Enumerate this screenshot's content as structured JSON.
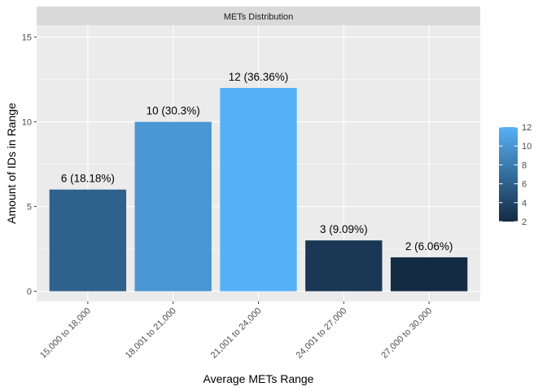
{
  "chart_data": {
    "type": "bar",
    "facet_title": "METs Distribution",
    "categories": [
      "15,000 to 18,000",
      "18,001 to 21,000",
      "21,001 to 24,000",
      "24,001 to 27,000",
      "27,000 to 30,000"
    ],
    "values": [
      6,
      10,
      12,
      3,
      2
    ],
    "data_labels": [
      "6 (18.18%)",
      "10 (30.3%)",
      "12 (36.36%)",
      "3 (9.09%)",
      "2 (6.06%)"
    ],
    "xlabel": "Average METs Range",
    "ylabel": "Amount of IDs in Range",
    "ylim": [
      -0.6,
      15.7
    ],
    "yticks": [
      0,
      5,
      10,
      15
    ],
    "y_tick_labels": [
      "0",
      "5",
      "10",
      "15"
    ],
    "grid": true,
    "legend": {
      "type": "colorbar",
      "placement": "right",
      "min": 2,
      "max": 12,
      "ticks": [
        2,
        4,
        6,
        8,
        10,
        12
      ],
      "tick_labels": [
        "2",
        "4",
        "6",
        "8",
        "10",
        "12"
      ],
      "low_color": "#132B43",
      "high_color": "#56B1F7"
    },
    "colors": {
      "panel_background": "#EBEBEB",
      "grid_major": "#FFFFFF",
      "strip_background": "#D9D9D9"
    }
  }
}
